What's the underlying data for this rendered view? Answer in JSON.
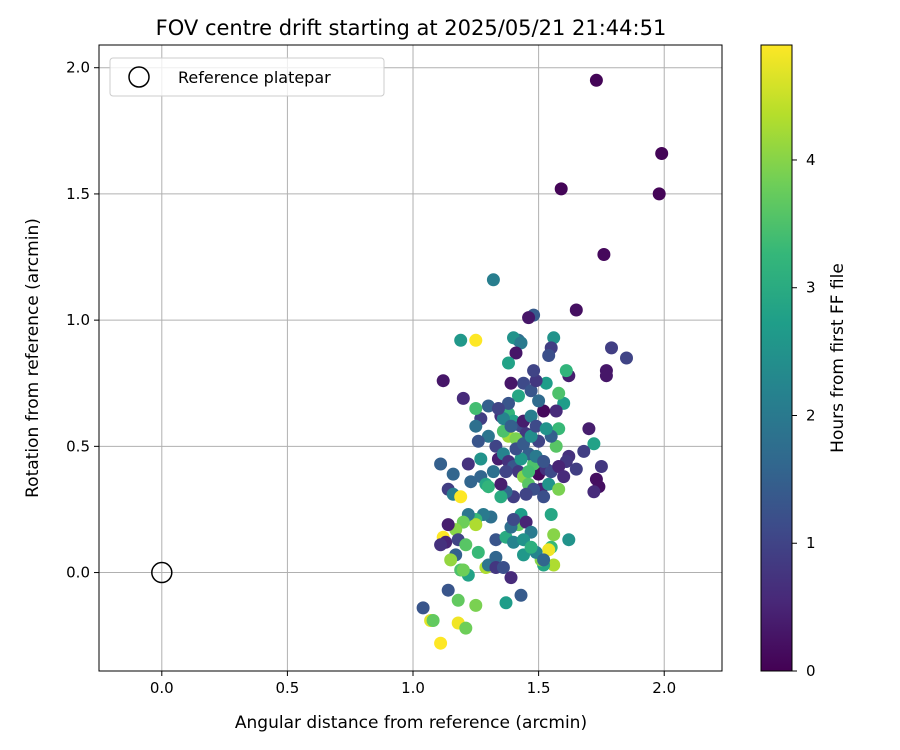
{
  "chart_data": {
    "type": "scatter",
    "title": "FOV centre drift starting at 2025/05/21 21:44:51",
    "xlabel": "Angular distance from reference (arcmin)",
    "ylabel": "Rotation from reference (arcmin)",
    "xlim": [
      -0.25,
      2.23
    ],
    "ylim": [
      -0.39,
      2.09
    ],
    "xticks": [
      0.0,
      0.5,
      1.0,
      1.5,
      2.0
    ],
    "xtick_labels": [
      "0.0",
      "0.5",
      "1.0",
      "1.5",
      "2.0"
    ],
    "yticks": [
      0.0,
      0.5,
      1.0,
      1.5,
      2.0
    ],
    "ytick_labels": [
      "0.0",
      "0.5",
      "1.0",
      "1.5",
      "2.0"
    ],
    "grid": true,
    "legend": {
      "position": "top-left",
      "entries": [
        "Reference platepar"
      ]
    },
    "reference_point": {
      "x": 0.0,
      "y": 0.0,
      "label": "Reference platepar"
    },
    "colorbar": {
      "label": "Hours from first FF file",
      "range": [
        0,
        4.9
      ],
      "ticks": [
        0,
        1,
        2,
        3,
        4
      ],
      "tick_labels": [
        "0",
        "1",
        "2",
        "3",
        "4"
      ],
      "colormap": [
        "#440154",
        "#482878",
        "#3e4989",
        "#31688e",
        "#26828e",
        "#1f9e89",
        "#35b779",
        "#6ece58",
        "#b5de2b",
        "#fde725"
      ]
    },
    "series": [
      {
        "points": [
          [
            1.73,
            1.95,
            0.05
          ],
          [
            1.99,
            1.66,
            0.05
          ],
          [
            1.59,
            1.52,
            0.05
          ],
          [
            1.98,
            1.5,
            0.05
          ],
          [
            1.76,
            1.26,
            0.1
          ],
          [
            1.65,
            1.04,
            0.2
          ],
          [
            1.85,
            0.85,
            1.0
          ],
          [
            1.79,
            0.89,
            0.9
          ],
          [
            1.77,
            0.8,
            0.3
          ],
          [
            1.77,
            0.78,
            0.3
          ],
          [
            1.73,
            0.37,
            0.2
          ],
          [
            1.74,
            0.34,
            0.2
          ],
          [
            1.72,
            0.32,
            0.6
          ],
          [
            1.75,
            0.42,
            0.8
          ],
          [
            1.7,
            0.57,
            0.4
          ],
          [
            1.72,
            0.51,
            2.8
          ],
          [
            1.68,
            0.48,
            0.9
          ],
          [
            1.65,
            0.41,
            0.9
          ],
          [
            1.62,
            0.46,
            0.7
          ],
          [
            1.61,
            0.44,
            0.8
          ],
          [
            1.62,
            0.78,
            0.4
          ],
          [
            1.61,
            0.8,
            3.2
          ],
          [
            1.6,
            0.67,
            2.7
          ],
          [
            1.58,
            0.71,
            3.5
          ],
          [
            1.57,
            0.64,
            0.6
          ],
          [
            1.58,
            0.57,
            3.3
          ],
          [
            1.57,
            0.5,
            3.6
          ],
          [
            1.55,
            0.54,
            1.5
          ],
          [
            1.56,
            0.93,
            2.5
          ],
          [
            1.55,
            0.89,
            0.9
          ],
          [
            1.54,
            0.86,
            1.2
          ],
          [
            1.53,
            0.75,
            2.7
          ],
          [
            1.52,
            0.64,
            0.1
          ],
          [
            1.51,
            0.44,
            0.6
          ],
          [
            1.5,
            0.39,
            0.1
          ],
          [
            1.51,
            0.33,
            0.5
          ],
          [
            1.52,
            0.3,
            1.2
          ],
          [
            1.54,
            0.35,
            2.5
          ],
          [
            1.55,
            0.23,
            2.9
          ],
          [
            1.56,
            0.15,
            4.0
          ],
          [
            1.55,
            0.1,
            3.3
          ],
          [
            1.54,
            0.09,
            4.8
          ],
          [
            1.56,
            0.03,
            4.3
          ],
          [
            1.52,
            0.03,
            2.9
          ],
          [
            1.51,
            0.05,
            4.0
          ],
          [
            1.62,
            0.13,
            2.5
          ],
          [
            1.58,
            0.33,
            3.9
          ],
          [
            1.48,
            1.02,
            1.4
          ],
          [
            1.46,
            1.01,
            0.3
          ],
          [
            1.42,
            0.92,
            1.7
          ],
          [
            1.4,
            0.93,
            2.5
          ],
          [
            1.43,
            0.91,
            2.0
          ],
          [
            1.41,
            0.87,
            0.3
          ],
          [
            1.38,
            0.83,
            2.8
          ],
          [
            1.32,
            1.16,
            2.1
          ],
          [
            1.25,
            0.92,
            4.9
          ],
          [
            1.19,
            0.92,
            2.6
          ],
          [
            1.12,
            0.76,
            0.3
          ],
          [
            1.2,
            0.69,
            0.6
          ],
          [
            1.27,
            0.61,
            0.9
          ],
          [
            1.3,
            0.66,
            1.5
          ],
          [
            1.35,
            0.62,
            0.7
          ],
          [
            1.38,
            0.63,
            3.2
          ],
          [
            1.4,
            0.6,
            2.8
          ],
          [
            1.43,
            0.58,
            1.1
          ],
          [
            1.45,
            0.55,
            0.8
          ],
          [
            1.42,
            0.52,
            2.3
          ],
          [
            1.38,
            0.54,
            4.2
          ],
          [
            1.36,
            0.56,
            3.5
          ],
          [
            1.33,
            0.5,
            1.0
          ],
          [
            1.3,
            0.54,
            1.9
          ],
          [
            1.26,
            0.52,
            1.3
          ],
          [
            1.25,
            0.58,
            1.8
          ],
          [
            1.25,
            0.65,
            3.4
          ],
          [
            1.27,
            0.45,
            2.5
          ],
          [
            1.22,
            0.43,
            0.7
          ],
          [
            1.11,
            0.43,
            1.5
          ],
          [
            1.16,
            0.39,
            1.6
          ],
          [
            1.14,
            0.33,
            0.9
          ],
          [
            1.16,
            0.31,
            2.1
          ],
          [
            1.19,
            0.3,
            4.9
          ],
          [
            1.23,
            0.36,
            1.6
          ],
          [
            1.27,
            0.38,
            1.6
          ],
          [
            1.29,
            0.35,
            2.9
          ],
          [
            1.32,
            0.4,
            1.8
          ],
          [
            1.34,
            0.45,
            0.4
          ],
          [
            1.36,
            0.47,
            2.2
          ],
          [
            1.38,
            0.44,
            0.7
          ],
          [
            1.4,
            0.42,
            1.3
          ],
          [
            1.42,
            0.4,
            0.8
          ],
          [
            1.44,
            0.38,
            4.0
          ],
          [
            1.46,
            0.35,
            3.6
          ],
          [
            1.48,
            0.33,
            1.2
          ],
          [
            1.45,
            0.31,
            1.0
          ],
          [
            1.4,
            0.3,
            0.9
          ],
          [
            1.37,
            0.32,
            1.7
          ],
          [
            1.35,
            0.3,
            3.0
          ],
          [
            1.3,
            0.34,
            3.2
          ],
          [
            1.31,
            0.22,
            1.8
          ],
          [
            1.28,
            0.23,
            2.0
          ],
          [
            1.25,
            0.21,
            3.3
          ],
          [
            1.25,
            0.19,
            4.3
          ],
          [
            1.22,
            0.23,
            1.9
          ],
          [
            1.2,
            0.2,
            3.8
          ],
          [
            1.17,
            0.17,
            4.0
          ],
          [
            1.14,
            0.19,
            0.4
          ],
          [
            1.12,
            0.14,
            4.9
          ],
          [
            1.13,
            0.12,
            0.5
          ],
          [
            1.11,
            0.11,
            0.7
          ],
          [
            1.18,
            0.13,
            1.0
          ],
          [
            1.21,
            0.11,
            3.6
          ],
          [
            1.17,
            0.07,
            1.5
          ],
          [
            1.15,
            0.05,
            4.1
          ],
          [
            1.19,
            0.01,
            3.5
          ],
          [
            1.22,
            -0.01,
            2.8
          ],
          [
            1.2,
            0.01,
            3.8
          ],
          [
            1.26,
            0.08,
            3.3
          ],
          [
            1.29,
            0.02,
            4.3
          ],
          [
            1.3,
            0.03,
            1.9
          ],
          [
            1.33,
            0.06,
            1.6
          ],
          [
            1.33,
            0.02,
            0.8
          ],
          [
            1.36,
            0.02,
            1.2
          ],
          [
            1.33,
            0.13,
            1.3
          ],
          [
            1.37,
            0.14,
            3.0
          ],
          [
            1.4,
            0.12,
            2.2
          ],
          [
            1.42,
            0.19,
            3.7
          ],
          [
            1.43,
            0.23,
            2.7
          ],
          [
            1.45,
            0.2,
            0.5
          ],
          [
            1.47,
            0.16,
            2.0
          ],
          [
            1.44,
            0.13,
            2.5
          ],
          [
            1.39,
            0.18,
            1.8
          ],
          [
            1.4,
            0.21,
            1.1
          ],
          [
            1.44,
            0.07,
            2.6
          ],
          [
            1.49,
            0.08,
            2.2
          ],
          [
            1.52,
            0.05,
            1.6
          ],
          [
            1.47,
            0.1,
            3.1
          ],
          [
            1.14,
            -0.07,
            1.3
          ],
          [
            1.18,
            -0.11,
            3.7
          ],
          [
            1.25,
            -0.13,
            3.9
          ],
          [
            1.37,
            -0.12,
            2.7
          ],
          [
            1.43,
            -0.09,
            1.4
          ],
          [
            1.39,
            -0.02,
            0.6
          ],
          [
            1.04,
            -0.14,
            1.3
          ],
          [
            1.07,
            -0.19,
            4.7
          ],
          [
            1.08,
            -0.19,
            3.7
          ],
          [
            1.18,
            -0.2,
            4.8
          ],
          [
            1.21,
            -0.22,
            3.8
          ],
          [
            1.11,
            -0.28,
            4.9
          ],
          [
            1.53,
            0.41,
            0.7
          ],
          [
            1.55,
            0.4,
            1.1
          ],
          [
            1.48,
            0.43,
            3.5
          ],
          [
            1.46,
            0.47,
            1.5
          ],
          [
            1.44,
            0.6,
            0.4
          ],
          [
            1.42,
            0.7,
            2.9
          ],
          [
            1.44,
            0.75,
            1.1
          ],
          [
            1.47,
            0.72,
            1.3
          ],
          [
            1.49,
            0.76,
            0.8
          ],
          [
            1.48,
            0.8,
            1.0
          ],
          [
            1.5,
            0.68,
            1.7
          ],
          [
            1.47,
            0.62,
            2.1
          ],
          [
            1.39,
            0.75,
            0.3
          ],
          [
            1.38,
            0.67,
            1.3
          ],
          [
            1.36,
            0.61,
            2.2
          ],
          [
            1.34,
            0.65,
            1.0
          ],
          [
            1.39,
            0.58,
            1.5
          ],
          [
            1.41,
            0.53,
            3.9
          ],
          [
            1.46,
            0.4,
            3.4
          ],
          [
            1.43,
            0.45,
            2.6
          ],
          [
            1.37,
            0.4,
            1.0
          ],
          [
            1.35,
            0.35,
            0.4
          ],
          [
            1.41,
            0.49,
            1.2
          ],
          [
            1.44,
            0.51,
            1.4
          ],
          [
            1.49,
            0.46,
            2.0
          ],
          [
            1.52,
            0.44,
            1.3
          ],
          [
            1.5,
            0.52,
            1.0
          ],
          [
            1.47,
            0.54,
            2.4
          ],
          [
            1.49,
            0.58,
            1.1
          ],
          [
            1.53,
            0.57,
            2.5
          ],
          [
            1.58,
            0.42,
            0.5
          ],
          [
            1.6,
            0.38,
            0.6
          ]
        ]
      }
    ]
  }
}
